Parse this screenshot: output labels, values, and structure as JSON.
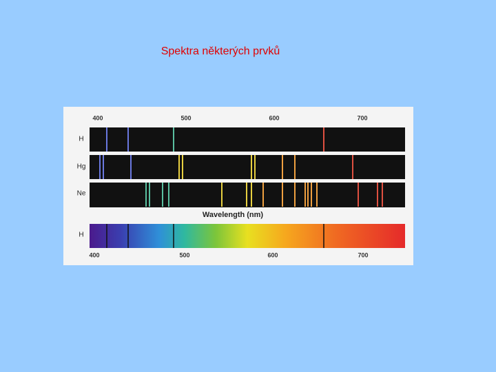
{
  "title": "Spektra některých prvků",
  "figure": {
    "top_ticks": [
      "400",
      "500",
      "600",
      "700"
    ],
    "rows": [
      "H",
      "Hg",
      "Ne"
    ],
    "axis_label": "Wavelength (nm)",
    "continuous_label": "H",
    "bottom_ticks": [
      "400",
      "500",
      "600",
      "700"
    ]
  }
}
